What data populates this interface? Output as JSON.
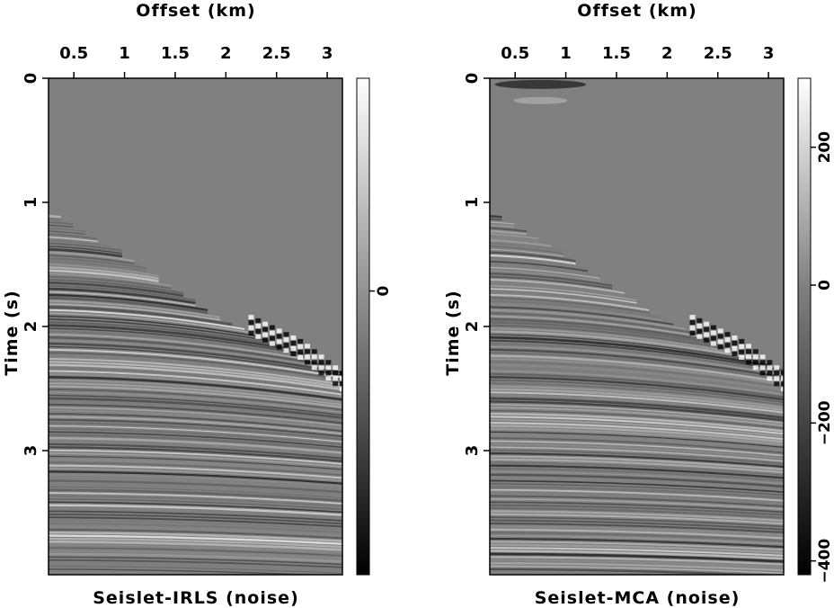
{
  "chart_data": [
    {
      "type": "heatmap",
      "title": "Seislet-IRLS (noise)",
      "xlabel": "Offset (km)",
      "ylabel": "Time (s)",
      "xlim": [
        0.25,
        3.15
      ],
      "ylim": [
        0,
        4.0
      ],
      "x_ticks": [
        0.5,
        1,
        1.5,
        2,
        2.5,
        3
      ],
      "x_tick_labels": [
        "0.5",
        "1",
        "1.5",
        "2",
        "2.5",
        "3"
      ],
      "y_ticks": [
        0,
        1,
        2,
        3
      ],
      "y_tick_labels": [
        "0",
        "1",
        "2",
        "3"
      ],
      "x_axis_position": "top",
      "colormap": "gray",
      "colorbar": {
        "ticks": [
          0
        ],
        "labels": [
          "0"
        ],
        "range": [
          -400,
          300
        ]
      },
      "features": {
        "first_break_times": {
          "offset": [
            0.25,
            1.0,
            2.0,
            3.15
          ],
          "time": [
            1.05,
            1.4,
            1.95,
            2.35
          ]
        },
        "strong_event": {
          "offset": [
            2.25,
            2.75,
            3.15
          ],
          "time": [
            1.95,
            2.15,
            2.4
          ]
        }
      }
    },
    {
      "type": "heatmap",
      "title": "Seislet-MCA (noise)",
      "xlabel": "Offset (km)",
      "ylabel": "Time (s)",
      "xlim": [
        0.25,
        3.15
      ],
      "ylim": [
        0,
        4.0
      ],
      "x_ticks": [
        0.5,
        1,
        1.5,
        2,
        2.5,
        3
      ],
      "x_tick_labels": [
        "0.5",
        "1",
        "1.5",
        "2",
        "2.5",
        "3"
      ],
      "y_ticks": [
        0,
        1,
        2,
        3
      ],
      "y_tick_labels": [
        "0",
        "1",
        "2",
        "3"
      ],
      "x_axis_position": "top",
      "colormap": "gray",
      "colorbar": {
        "ticks": [
          200,
          0,
          -200,
          -400
        ],
        "labels": [
          "200",
          "0",
          "−200",
          "−400"
        ],
        "range": [
          -420,
          300
        ]
      },
      "features": {
        "first_break_times": {
          "offset": [
            0.25,
            1.0,
            2.0,
            3.15
          ],
          "time": [
            1.05,
            1.4,
            1.95,
            2.35
          ]
        },
        "strong_event": {
          "offset": [
            2.25,
            2.75,
            3.15
          ],
          "time": [
            1.95,
            2.15,
            2.4
          ]
        },
        "early_artifact": {
          "offset": [
            0.3,
            1.2
          ],
          "time": [
            0.0,
            0.2
          ]
        }
      }
    }
  ]
}
